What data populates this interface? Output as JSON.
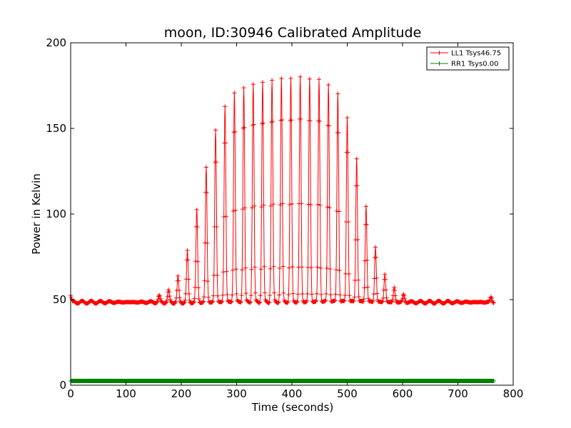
{
  "chart_data": {
    "type": "line",
    "title": "moon, ID:30946 Calibrated Amplitude",
    "xlabel": "Time (seconds)",
    "ylabel": "Power in Kelvin",
    "xlim": [
      0,
      800
    ],
    "ylim": [
      0,
      200
    ],
    "x_ticks": [
      0,
      100,
      200,
      300,
      400,
      500,
      600,
      700,
      800
    ],
    "y_ticks": [
      0,
      50,
      100,
      150,
      200
    ],
    "grid": false,
    "legend_position": "top-right",
    "series": [
      {
        "name": "LL1 Tsys46.75",
        "color": "#ff0000",
        "marker": "plus",
        "baseline": 48.5,
        "x_range": [
          0,
          765
        ],
        "peaks": [
          {
            "x": 160,
            "y": 52
          },
          {
            "x": 177,
            "y": 55
          },
          {
            "x": 194,
            "y": 63
          },
          {
            "x": 211,
            "y": 78
          },
          {
            "x": 228,
            "y": 102
          },
          {
            "x": 245,
            "y": 127
          },
          {
            "x": 262,
            "y": 149
          },
          {
            "x": 279,
            "y": 163
          },
          {
            "x": 296,
            "y": 171
          },
          {
            "x": 313,
            "y": 174
          },
          {
            "x": 330,
            "y": 176
          },
          {
            "x": 347,
            "y": 177
          },
          {
            "x": 364,
            "y": 178
          },
          {
            "x": 381,
            "y": 179
          },
          {
            "x": 398,
            "y": 179
          },
          {
            "x": 415,
            "y": 180
          },
          {
            "x": 432,
            "y": 179
          },
          {
            "x": 449,
            "y": 179
          },
          {
            "x": 466,
            "y": 176
          },
          {
            "x": 483,
            "y": 171
          },
          {
            "x": 500,
            "y": 157
          },
          {
            "x": 517,
            "y": 133
          },
          {
            "x": 534,
            "y": 105
          },
          {
            "x": 551,
            "y": 81
          },
          {
            "x": 568,
            "y": 65
          },
          {
            "x": 585,
            "y": 57
          },
          {
            "x": 602,
            "y": 53
          }
        ]
      },
      {
        "name": "RR1 Tsys0.00",
        "color": "#008000",
        "marker": "plus",
        "baseline": 2.5,
        "x_range": [
          0,
          765
        ]
      }
    ]
  }
}
